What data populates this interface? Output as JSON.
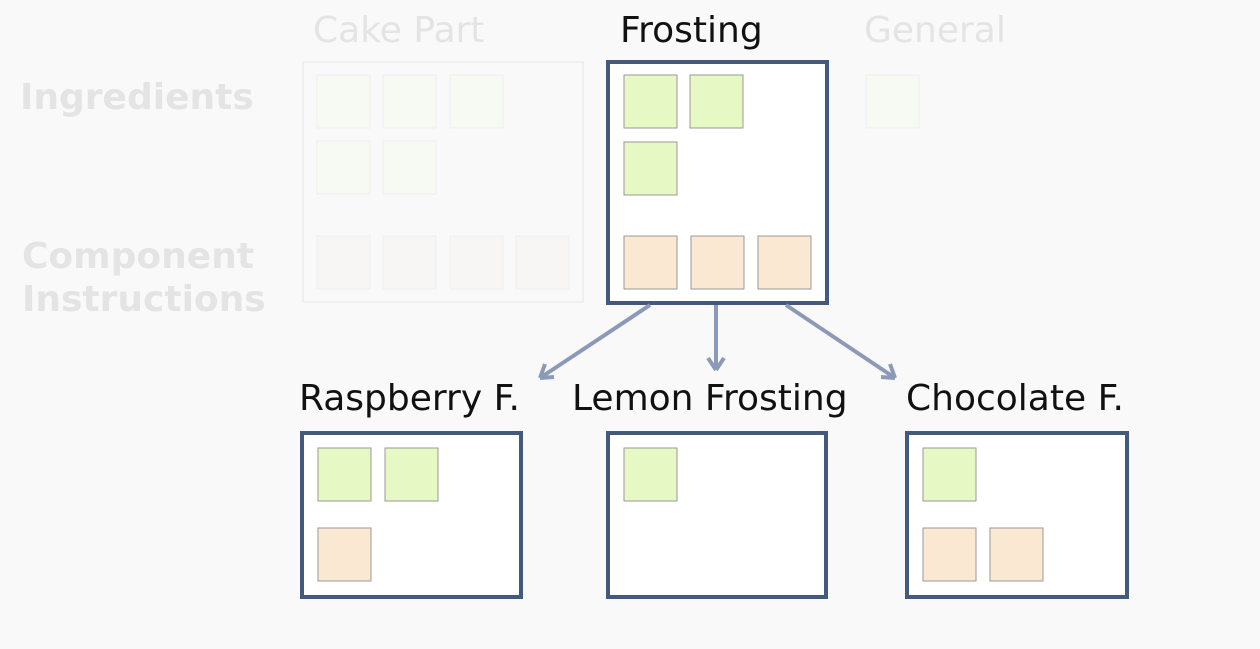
{
  "row_labels": [
    "Ingredients",
    "Component Instructions"
  ],
  "columns": [
    "Cake Part",
    "Frosting",
    "General"
  ],
  "children": [
    "Raspberry F.",
    "Lemon Frosting",
    "Chocolate F."
  ]
}
